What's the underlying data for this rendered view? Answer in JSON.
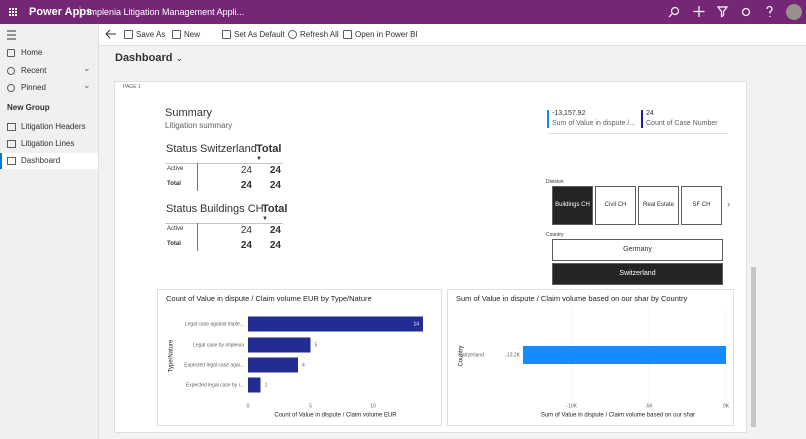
{
  "app_bar": {
    "product": "Power Apps",
    "app_name": "Implenia Litigation Management Appli..."
  },
  "nav": {
    "items": [
      "Home",
      "Recent",
      "Pinned"
    ],
    "group": "New Group",
    "group_items": [
      "Litigation Headers",
      "Litigation Lines",
      "Dashboard"
    ],
    "selected": 2
  },
  "commands": [
    "Save As",
    "New",
    "Set As Default",
    "Refresh All",
    "Open in Power BI"
  ],
  "page_title": "Dashboard",
  "report": {
    "page_label": "PAGE 1",
    "summary": {
      "title": "Summary",
      "subtitle": "Litigation summary"
    },
    "kpis": [
      {
        "value": "-13,157.92",
        "label": "Sum of Value in dispute /...",
        "color": "#118dff"
      },
      {
        "value": "24",
        "label": "Count of Case Number",
        "color": "#12239e"
      }
    ],
    "matrices": [
      {
        "header": [
          "Status",
          "Switzerland",
          "Total"
        ],
        "rows": [
          [
            "Active",
            "24",
            "24"
          ],
          [
            "Total",
            "24",
            "24"
          ]
        ]
      },
      {
        "header": [
          "Status",
          "Buildings CH",
          "Total"
        ],
        "rows": [
          [
            "Active",
            "24",
            "24"
          ],
          [
            "Total",
            "24",
            "24"
          ]
        ]
      }
    ],
    "slicers": [
      {
        "title": "Division",
        "options": [
          "Buildings CH",
          "Civil CH",
          "Real Estate",
          "SF CH"
        ],
        "selected": 0
      },
      {
        "title": "Country",
        "options": [
          "Germany",
          "Switzerland"
        ],
        "selected": 1
      }
    ],
    "charts": [
      {
        "type": "bar",
        "title": "Count of Value in dispute / Claim volume EUR by Type/Nature",
        "x_label": "Count of Value in dispute / Claim volume EUR",
        "y_label": "Type/Nature",
        "categories": [
          "Legal case against imple...",
          "Legal case by implenia",
          "Expected legal case agai...",
          "Expected legal case by i..."
        ],
        "values": [
          14,
          5,
          4,
          1
        ],
        "color": "#232c93",
        "xlim": [
          0,
          14
        ],
        "xticks": [
          0,
          5,
          10
        ],
        "grid": false
      },
      {
        "type": "bar",
        "title": "Sum of Value in dispute / Claim volume based on our shar by Country",
        "x_label": "Sum of Value in dispute / Claim volume based on our shar",
        "y_label": "Country",
        "categories": [
          "Switzerland"
        ],
        "values": [
          -13157.92
        ],
        "value_labels": [
          "-13.2K"
        ],
        "color": "#118dff",
        "xlim": [
          -14000,
          0
        ],
        "xticks": [
          {
            "value": -10000,
            "label": "-10K"
          },
          {
            "value": -5000,
            "label": "-5K"
          },
          {
            "value": 0,
            "label": "0K"
          }
        ],
        "grid": true
      }
    ]
  }
}
